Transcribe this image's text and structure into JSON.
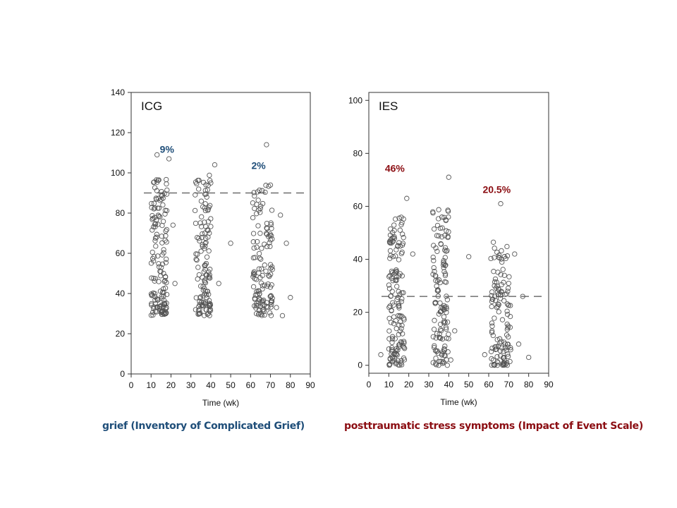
{
  "colors": {
    "grief": "#1f4e79",
    "ptss": "#8b0d12",
    "points": "#555555",
    "axes": "#333333",
    "threshold": "#555555"
  },
  "captions": {
    "left": "grief (Inventory of Complicated Grief)",
    "right": "posttraumatic stress symptoms (Impact of Event Scale)"
  },
  "chart_data": [
    {
      "type": "scatter",
      "panel_label": "ICG",
      "xlabel": "Time  (wk)",
      "ylabel": "",
      "xlim": [
        0,
        90
      ],
      "ylim": [
        0,
        140
      ],
      "xticks": [
        0,
        10,
        20,
        30,
        40,
        50,
        60,
        70,
        80,
        90
      ],
      "yticks": [
        0,
        20,
        40,
        60,
        80,
        100,
        120,
        140
      ],
      "threshold": 90,
      "grid": false,
      "annotations": [
        {
          "text": "9%",
          "x": 18,
          "y": 110,
          "color": "#1f4e79"
        },
        {
          "text": "2%",
          "x": 64,
          "y": 102,
          "color": "#1f4e79"
        }
      ],
      "clusters": [
        {
          "x_center": 14,
          "x_spread": 4,
          "n": 150,
          "y_min": 29,
          "y_max": 97
        },
        {
          "x_center": 36,
          "x_spread": 4,
          "n": 130,
          "y_min": 29,
          "y_max": 99
        },
        {
          "x_center": 66,
          "x_spread": 5,
          "n": 130,
          "y_min": 29,
          "y_max": 94
        }
      ],
      "outliers": [
        {
          "x": 13,
          "y": 109
        },
        {
          "x": 19,
          "y": 107
        },
        {
          "x": 21,
          "y": 74
        },
        {
          "x": 42,
          "y": 104
        },
        {
          "x": 40,
          "y": 95
        },
        {
          "x": 44,
          "y": 45
        },
        {
          "x": 50,
          "y": 65
        },
        {
          "x": 68,
          "y": 114
        },
        {
          "x": 78,
          "y": 65
        },
        {
          "x": 75,
          "y": 79
        },
        {
          "x": 76,
          "y": 29
        },
        {
          "x": 80,
          "y": 38
        },
        {
          "x": 73,
          "y": 33
        },
        {
          "x": 22,
          "y": 45
        }
      ]
    },
    {
      "type": "scatter",
      "panel_label": "IES",
      "xlabel": "Time  (wk)",
      "ylabel": "",
      "xlim": [
        0,
        90
      ],
      "ylim": [
        -3,
        103
      ],
      "xticks": [
        0,
        10,
        20,
        30,
        40,
        50,
        60,
        70,
        80,
        90
      ],
      "yticks": [
        0,
        20,
        40,
        60,
        80,
        100
      ],
      "threshold": 26,
      "grid": false,
      "annotations": [
        {
          "text": "46%",
          "x": 13,
          "y": 73,
          "color": "#8b0d12"
        },
        {
          "text": "20.5%",
          "x": 64,
          "y": 65,
          "color": "#8b0d12"
        }
      ],
      "clusters": [
        {
          "x_center": 14,
          "x_spread": 4,
          "n": 150,
          "y_min": 0,
          "y_max": 56
        },
        {
          "x_center": 36,
          "x_spread": 4,
          "n": 130,
          "y_min": 0,
          "y_max": 60
        },
        {
          "x_center": 66,
          "x_spread": 5,
          "n": 130,
          "y_min": 0,
          "y_max": 47
        }
      ],
      "outliers": [
        {
          "x": 19,
          "y": 63
        },
        {
          "x": 22,
          "y": 42
        },
        {
          "x": 40,
          "y": 71
        },
        {
          "x": 43,
          "y": 13
        },
        {
          "x": 50,
          "y": 41
        },
        {
          "x": 66,
          "y": 61
        },
        {
          "x": 73,
          "y": 42
        },
        {
          "x": 77,
          "y": 26
        },
        {
          "x": 80,
          "y": 3
        },
        {
          "x": 75,
          "y": 8
        },
        {
          "x": 58,
          "y": 4
        },
        {
          "x": 6,
          "y": 4
        },
        {
          "x": 41,
          "y": 2
        },
        {
          "x": 38,
          "y": 49
        }
      ]
    }
  ]
}
